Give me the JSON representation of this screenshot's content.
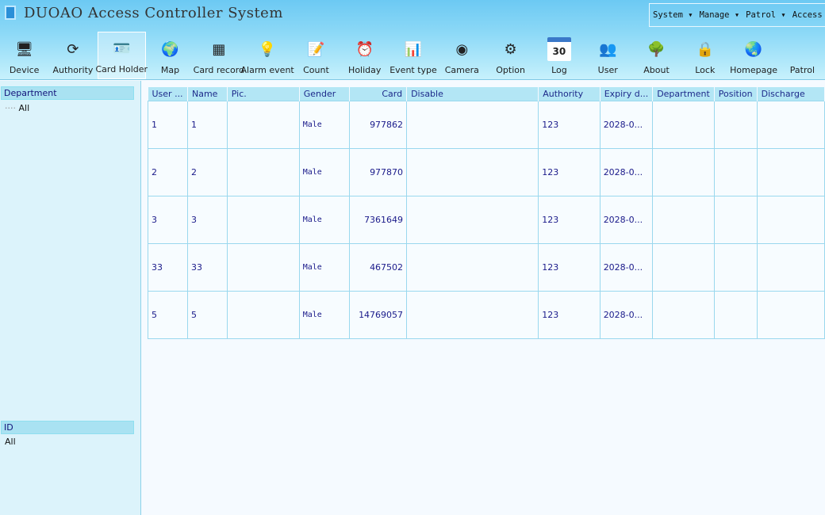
{
  "app": {
    "title": "DUOAO Access Controller System"
  },
  "menu": [
    "System ▾",
    "Manage ▾",
    "Patrol ▾",
    "Access co"
  ],
  "toolbar": [
    {
      "label": "Device",
      "icon": "monitor-icon",
      "glyph": "🖥",
      "color": "#3a7fd0"
    },
    {
      "label": "Authority",
      "icon": "refresh-icon",
      "glyph": "⟳",
      "color": "#4caf24"
    },
    {
      "label": "Card Holder",
      "icon": "id-card-icon",
      "glyph": "🪪",
      "color": "#888"
    },
    {
      "label": "Map",
      "icon": "globe-icon",
      "glyph": "🌍",
      "color": "#2c6fb0"
    },
    {
      "label": "Card record",
      "icon": "table-icon",
      "glyph": "▦",
      "color": "#5a8fc8"
    },
    {
      "label": "Alarm event",
      "icon": "bulb-icon",
      "glyph": "💡",
      "color": "#f5d000"
    },
    {
      "label": "Count",
      "icon": "notepad-icon",
      "glyph": "📝",
      "color": "#ddd"
    },
    {
      "label": "Holiday",
      "icon": "alarm-clock-icon",
      "glyph": "⏰",
      "color": "#e0a060"
    },
    {
      "label": "Event type",
      "icon": "chart-icon",
      "glyph": "📊",
      "color": "#eee"
    },
    {
      "label": "Camera",
      "icon": "camera-icon",
      "glyph": "◉",
      "color": "#444"
    },
    {
      "label": "Option",
      "icon": "gear-icon",
      "glyph": "⚙",
      "color": "#999"
    },
    {
      "label": "Log",
      "icon": "calendar-icon",
      "glyph": "30",
      "color": "#fff"
    },
    {
      "label": "User",
      "icon": "users-icon",
      "glyph": "👥",
      "color": "#6aa0d8"
    },
    {
      "label": "About",
      "icon": "tree-icon",
      "glyph": "🌳",
      "color": "#3a8a2a"
    },
    {
      "label": "Lock",
      "icon": "lock-icon",
      "glyph": "🔒",
      "color": "#d4b050"
    },
    {
      "label": "Homepage",
      "icon": "globe-icon",
      "glyph": "🌏",
      "color": "#2c6fb0"
    },
    {
      "label": "Patrol",
      "icon": "patrol-icon",
      "glyph": "",
      "color": "transparent"
    }
  ],
  "active_tool": "Card Holder",
  "left": {
    "department_header": "Department",
    "department_items": [
      "All"
    ],
    "id_header": "ID",
    "id_items": [
      "All"
    ]
  },
  "table": {
    "columns": [
      "User ...",
      "Name",
      "Pic.",
      "Gender",
      "Card",
      "Disable",
      "Authority",
      "Expiry d...",
      "Department",
      "Position",
      "Discharge"
    ],
    "rows": [
      [
        "1",
        "1",
        "",
        "Male",
        "977862",
        "",
        "123",
        "2028-0...",
        "",
        "",
        ""
      ],
      [
        "2",
        "2",
        "",
        "Male",
        "977870",
        "",
        "123",
        "2028-0...",
        "",
        "",
        ""
      ],
      [
        "3",
        "3",
        "",
        "Male",
        "7361649",
        "",
        "123",
        "2028-0...",
        "",
        "",
        ""
      ],
      [
        "33",
        "33",
        "",
        "Male",
        "467502",
        "",
        "123",
        "2028-0...",
        "",
        "",
        ""
      ],
      [
        "5",
        "5",
        "",
        "Male",
        "14769057",
        "",
        "123",
        "2028-0...",
        "",
        "",
        ""
      ]
    ]
  }
}
